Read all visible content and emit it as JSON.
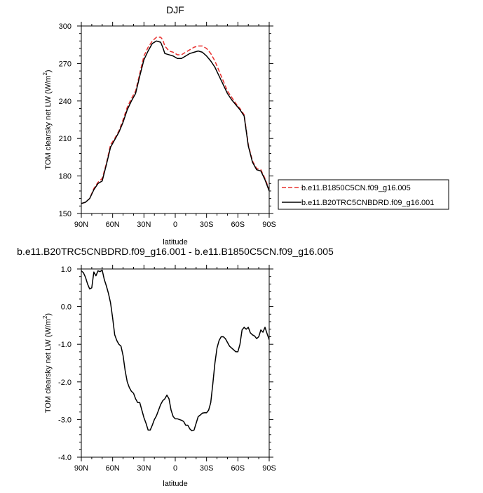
{
  "chart_data": [
    {
      "type": "line",
      "title": "DJF",
      "xlabel": "latitude",
      "ylabel": "TOM clearsky net LW (W/m",
      "ylabel_sup": "2",
      "ylabel_end": ")",
      "xlim": [
        90,
        -90
      ],
      "ylim": [
        150,
        300
      ],
      "xticks": [
        90,
        60,
        30,
        0,
        -30,
        -60,
        -90
      ],
      "xtick_labels": [
        "90N",
        "60N",
        "30N",
        "0",
        "30S",
        "60S",
        "90S"
      ],
      "yticks": [
        150,
        180,
        210,
        240,
        270,
        300
      ],
      "ytick_labels": [
        "150",
        "180",
        "210",
        "240",
        "270",
        "300"
      ],
      "legend_position": "right",
      "series": [
        {
          "name": "b.e11.B1850C5CN.f09_g16.005",
          "color": "#e8312f",
          "dash": "dashed",
          "x": [
            90,
            86,
            82,
            78,
            74,
            70,
            66,
            62,
            58,
            54,
            50,
            46,
            42,
            38,
            34,
            30,
            26,
            22,
            18,
            14,
            12,
            10,
            6,
            2,
            -2,
            -6,
            -10,
            -14,
            -18,
            -22,
            -26,
            -30,
            -34,
            -38,
            -42,
            -46,
            -50,
            -54,
            -58,
            -62,
            -66,
            -70,
            -74,
            -78,
            -82,
            -86,
            -90
          ],
          "y": [
            158,
            159,
            162,
            170,
            175,
            178,
            190,
            205,
            210,
            216,
            225,
            235,
            242,
            248,
            262,
            276,
            283,
            288,
            291,
            291,
            289,
            284,
            280,
            279,
            277,
            277,
            279,
            281,
            283,
            284,
            284,
            282,
            278,
            272,
            264,
            256,
            248,
            243,
            238,
            234,
            229,
            205,
            192,
            186,
            185,
            178,
            169
          ]
        },
        {
          "name": "b.e11.B20TRC5CNBDRD.f09_g16.001",
          "color": "#000000",
          "dash": "solid",
          "x": [
            90,
            86,
            82,
            78,
            74,
            70,
            66,
            62,
            58,
            54,
            50,
            46,
            42,
            38,
            34,
            30,
            26,
            22,
            18,
            14,
            12,
            10,
            6,
            2,
            -2,
            -6,
            -10,
            -14,
            -18,
            -22,
            -26,
            -30,
            -34,
            -38,
            -42,
            -46,
            -50,
            -54,
            -58,
            -62,
            -66,
            -70,
            -74,
            -78,
            -82,
            -86,
            -90
          ],
          "y": [
            158,
            159,
            162,
            169,
            174,
            176,
            189,
            203,
            209,
            215,
            223,
            233,
            240,
            246,
            260,
            273,
            280,
            286,
            288,
            287,
            283,
            278,
            277,
            276,
            274,
            274,
            276,
            278,
            279,
            280,
            279,
            276,
            272,
            267,
            260,
            253,
            246,
            241,
            237,
            233,
            228,
            204,
            191,
            185,
            184,
            177,
            168
          ]
        }
      ]
    },
    {
      "type": "line",
      "title": "b.e11.B20TRC5CNBDRD.f09_g16.001 - b.e11.B1850C5CN.f09_g16.005",
      "xlabel": "latitude",
      "ylabel": "TOM clearsky net LW (W/m",
      "ylabel_sup": "2",
      "ylabel_end": ")",
      "xlim": [
        90,
        -90
      ],
      "ylim": [
        -4,
        1
      ],
      "xticks": [
        90,
        60,
        30,
        0,
        -30,
        -60,
        -90
      ],
      "xtick_labels": [
        "90N",
        "60N",
        "30N",
        "0",
        "30S",
        "60S",
        "90S"
      ],
      "yticks": [
        -4,
        -3,
        -2,
        -1,
        0,
        1
      ],
      "ytick_labels": [
        "-4.0",
        "-3.0",
        "-2.0",
        "-1.0",
        "0.0",
        "1.0"
      ],
      "series": [
        {
          "color": "#000000",
          "dash": "solid",
          "x": [
            90,
            88,
            86,
            84,
            82,
            80,
            78,
            76,
            74,
            72,
            70,
            68,
            66,
            64,
            62,
            60,
            58,
            56,
            54,
            52,
            50,
            48,
            46,
            44,
            42,
            40,
            38,
            36,
            34,
            32,
            30,
            28,
            26,
            24,
            22,
            20,
            18,
            16,
            14,
            12,
            10,
            8,
            6,
            4,
            2,
            0,
            -2,
            -4,
            -6,
            -8,
            -10,
            -12,
            -14,
            -16,
            -18,
            -20,
            -22,
            -24,
            -26,
            -28,
            -30,
            -32,
            -34,
            -36,
            -38,
            -40,
            -42,
            -44,
            -46,
            -48,
            -50,
            -52,
            -54,
            -56,
            -58,
            -60,
            -62,
            -64,
            -66,
            -68,
            -70,
            -72,
            -74,
            -76,
            -78,
            -80,
            -82,
            -84,
            -86,
            -88,
            -90
          ],
          "y": [
            0.95,
            0.9,
            0.78,
            0.6,
            0.47,
            0.5,
            0.92,
            0.82,
            0.95,
            0.93,
            0.97,
            0.72,
            0.55,
            0.35,
            0.1,
            -0.3,
            -0.75,
            -0.9,
            -1.0,
            -1.05,
            -1.3,
            -1.7,
            -2.0,
            -2.15,
            -2.25,
            -2.3,
            -2.45,
            -2.55,
            -2.55,
            -2.75,
            -2.95,
            -3.1,
            -3.28,
            -3.28,
            -3.15,
            -3.0,
            -2.9,
            -2.75,
            -2.6,
            -2.5,
            -2.45,
            -2.35,
            -2.45,
            -2.75,
            -2.92,
            -2.98,
            -2.98,
            -3.0,
            -3.02,
            -3.05,
            -3.15,
            -3.15,
            -3.25,
            -3.3,
            -3.28,
            -3.1,
            -2.92,
            -2.88,
            -2.83,
            -2.82,
            -2.82,
            -2.75,
            -2.55,
            -2.05,
            -1.5,
            -1.1,
            -0.9,
            -0.8,
            -0.8,
            -0.85,
            -0.95,
            -1.05,
            -1.1,
            -1.15,
            -1.2,
            -1.2,
            -1.0,
            -0.62,
            -0.55,
            -0.6,
            -0.55,
            -0.7,
            -0.75,
            -0.78,
            -0.85,
            -0.8,
            -0.62,
            -0.68,
            -0.55,
            -0.72,
            -0.88
          ]
        }
      ]
    }
  ]
}
